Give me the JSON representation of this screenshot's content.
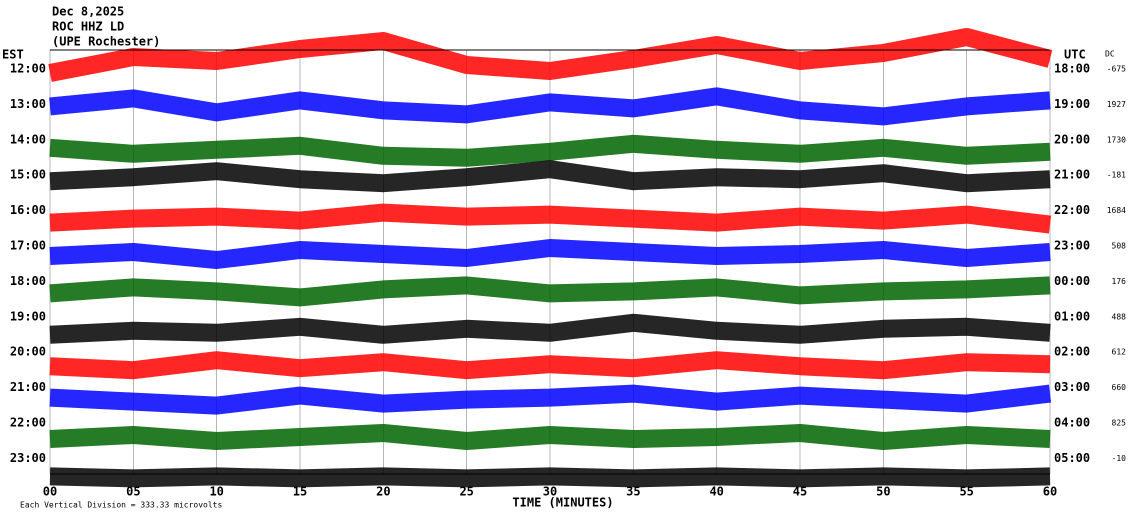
{
  "chart_data": {
    "type": "helicorder",
    "title_lines": [
      "Dec 8,2025",
      "ROC HHZ LD",
      "(UPE Rochester)"
    ],
    "left_axis_label": "EST",
    "right_axis_label": "UTC",
    "dc_label": "DC",
    "xlabel": "TIME (MINUTES)",
    "scale_note": "Each Vertical Division = 333.33 microvolts",
    "xlim": [
      0,
      60
    ],
    "xticks": [
      {
        "value": 0,
        "label": "00"
      },
      {
        "value": 5,
        "label": "05"
      },
      10,
      15,
      20,
      25,
      30,
      35,
      40,
      45,
      50,
      55,
      60
    ],
    "est_labels": [
      "12:00",
      "13:00",
      "14:00",
      "15:00",
      "16:00",
      "17:00",
      "18:00",
      "19:00",
      "20:00",
      "21:00",
      "22:00",
      "23:00"
    ],
    "utc_labels": [
      "18:00",
      "19:00",
      "20:00",
      "21:00",
      "22:00",
      "23:00",
      "00:00",
      "01:00",
      "02:00",
      "03:00",
      "04:00",
      "05:00"
    ],
    "dc": [
      -675,
      1927,
      1730,
      -181,
      1684,
      508,
      176,
      488,
      612,
      660,
      825,
      -10
    ],
    "x": [
      0,
      5,
      10,
      15,
      20,
      25,
      30,
      35,
      40,
      45,
      50,
      55,
      60
    ],
    "series": [
      {
        "color": "#ff0000",
        "values": [
          0.2,
          -0.6,
          -0.4,
          -1,
          -1.4,
          -0.2,
          0.1,
          -0.5,
          -1.2,
          -0.4,
          -0.8,
          -1.6,
          -0.5
        ]
      },
      {
        "color": "#0000ff",
        "values": [
          0.1,
          -0.3,
          0.4,
          -0.2,
          0.3,
          0.5,
          -0.1,
          0.2,
          -0.4,
          0.3,
          0.6,
          0.1,
          -0.2
        ]
      },
      {
        "color": "#006400",
        "values": [
          0.4,
          0.7,
          0.5,
          0.3,
          0.8,
          0.9,
          0.6,
          0.2,
          0.5,
          0.7,
          0.4,
          0.8,
          0.6
        ]
      },
      {
        "color": "#000000",
        "values": [
          0.3,
          0.1,
          -0.2,
          0.2,
          0.4,
          0.1,
          -0.3,
          0.3,
          0.1,
          0.2,
          -0.1,
          0.4,
          0.2
        ]
      },
      {
        "color": "#ff0000",
        "values": [
          0.6,
          0.4,
          0.3,
          0.5,
          0.1,
          0.3,
          0.2,
          0.4,
          0.6,
          0.3,
          0.5,
          0.2,
          0.7
        ]
      },
      {
        "color": "#0000ff",
        "values": [
          0.5,
          0.3,
          0.7,
          0.2,
          0.4,
          0.6,
          0.1,
          0.3,
          0.5,
          0.4,
          0.2,
          0.6,
          0.3
        ]
      },
      {
        "color": "#006400",
        "values": [
          0.6,
          0.3,
          0.5,
          0.8,
          0.4,
          0.2,
          0.6,
          0.5,
          0.3,
          0.7,
          0.5,
          0.4,
          0.2
        ]
      },
      {
        "color": "#000000",
        "values": [
          0.9,
          0.7,
          0.8,
          0.5,
          0.9,
          0.6,
          0.8,
          0.3,
          0.7,
          0.9,
          0.6,
          0.5,
          0.8
        ]
      },
      {
        "color": "#ff0000",
        "values": [
          0.7,
          0.9,
          0.4,
          0.8,
          0.5,
          0.9,
          0.6,
          0.8,
          0.4,
          0.7,
          0.9,
          0.5,
          0.6
        ]
      },
      {
        "color": "#0000ff",
        "values": [
          0.5,
          0.7,
          0.9,
          0.4,
          0.8,
          0.6,
          0.5,
          0.3,
          0.7,
          0.4,
          0.6,
          0.8,
          0.3
        ]
      },
      {
        "color": "#006400",
        "values": [
          0.8,
          0.6,
          0.9,
          0.7,
          0.5,
          0.9,
          0.6,
          0.8,
          0.7,
          0.5,
          0.9,
          0.6,
          0.8
        ]
      },
      {
        "color": "#000000",
        "values": [
          0.9,
          1,
          0.9,
          1,
          0.9,
          1,
          0.9,
          1,
          0.9,
          1,
          0.9,
          1,
          0.9
        ]
      }
    ]
  }
}
